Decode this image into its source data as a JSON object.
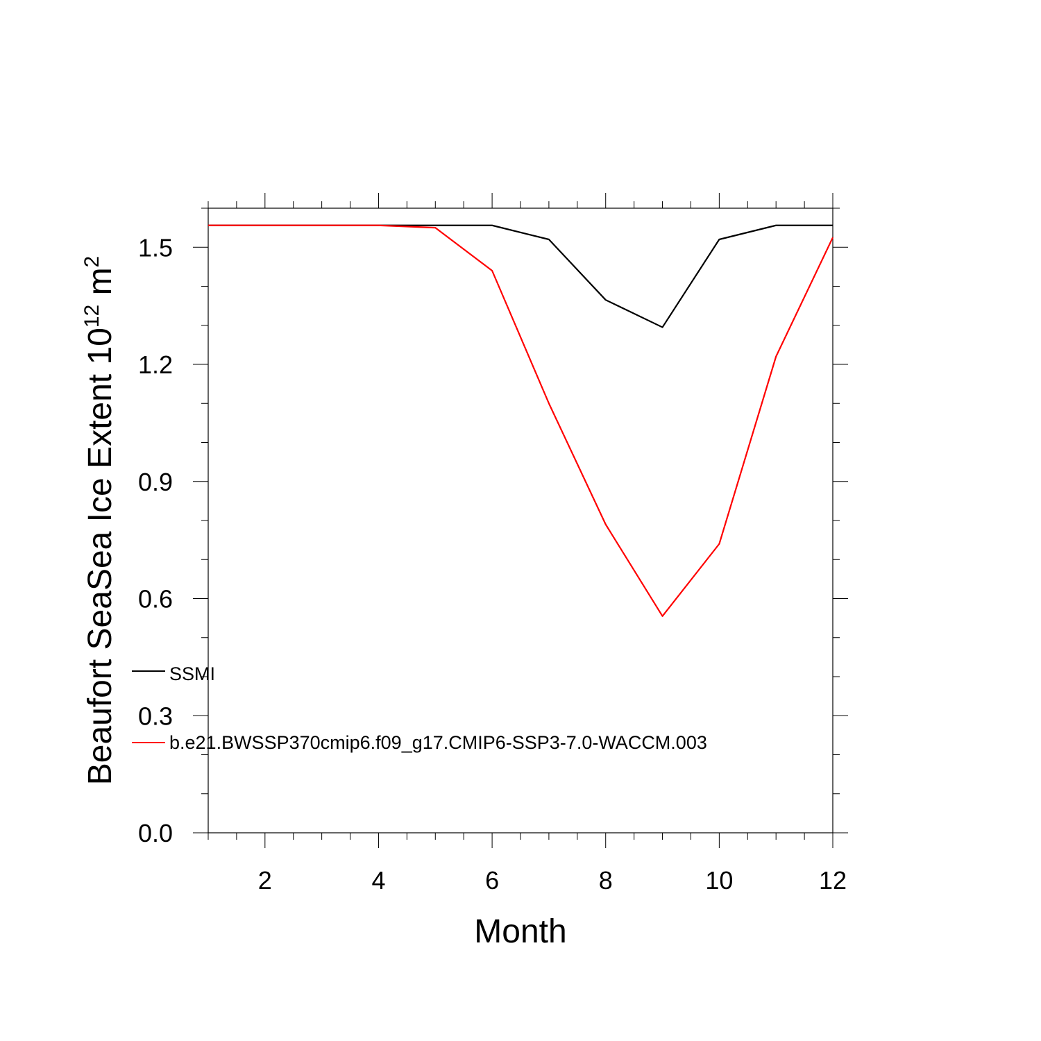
{
  "chart_data": {
    "type": "line",
    "title": "",
    "xlabel": "Month",
    "ylabel": {
      "main": "Beaufort SeaSea Ice Extent 10",
      "exponent": "12",
      "unit_base": " m",
      "unit_exponent": "2"
    },
    "xlim": [
      1,
      12
    ],
    "ylim": [
      0,
      1.6
    ],
    "x_ticks": [
      "2",
      "4",
      "6",
      "8",
      "10",
      "12"
    ],
    "y_ticks": [
      "0.0",
      "0.3",
      "0.6",
      "0.9",
      "1.2",
      "1.5"
    ],
    "grid": false,
    "legend_placement": "lower-left, inside",
    "x": [
      1,
      2,
      3,
      4,
      5,
      6,
      7,
      8,
      9,
      10,
      11,
      12
    ],
    "series": [
      {
        "name": "SSMI",
        "color": "#000000",
        "values": [
          1.556,
          1.556,
          1.556,
          1.556,
          1.556,
          1.556,
          1.52,
          1.365,
          1.295,
          1.52,
          1.556,
          1.556
        ]
      },
      {
        "name": "b.e21.BWSSP370cmip6.f09_g17.CMIP6-SSP3-7.0-WACCM.003",
        "color": "#ff0000",
        "values": [
          1.556,
          1.556,
          1.556,
          1.556,
          1.55,
          1.44,
          1.1,
          0.79,
          0.555,
          0.74,
          1.22,
          1.525
        ]
      }
    ]
  }
}
